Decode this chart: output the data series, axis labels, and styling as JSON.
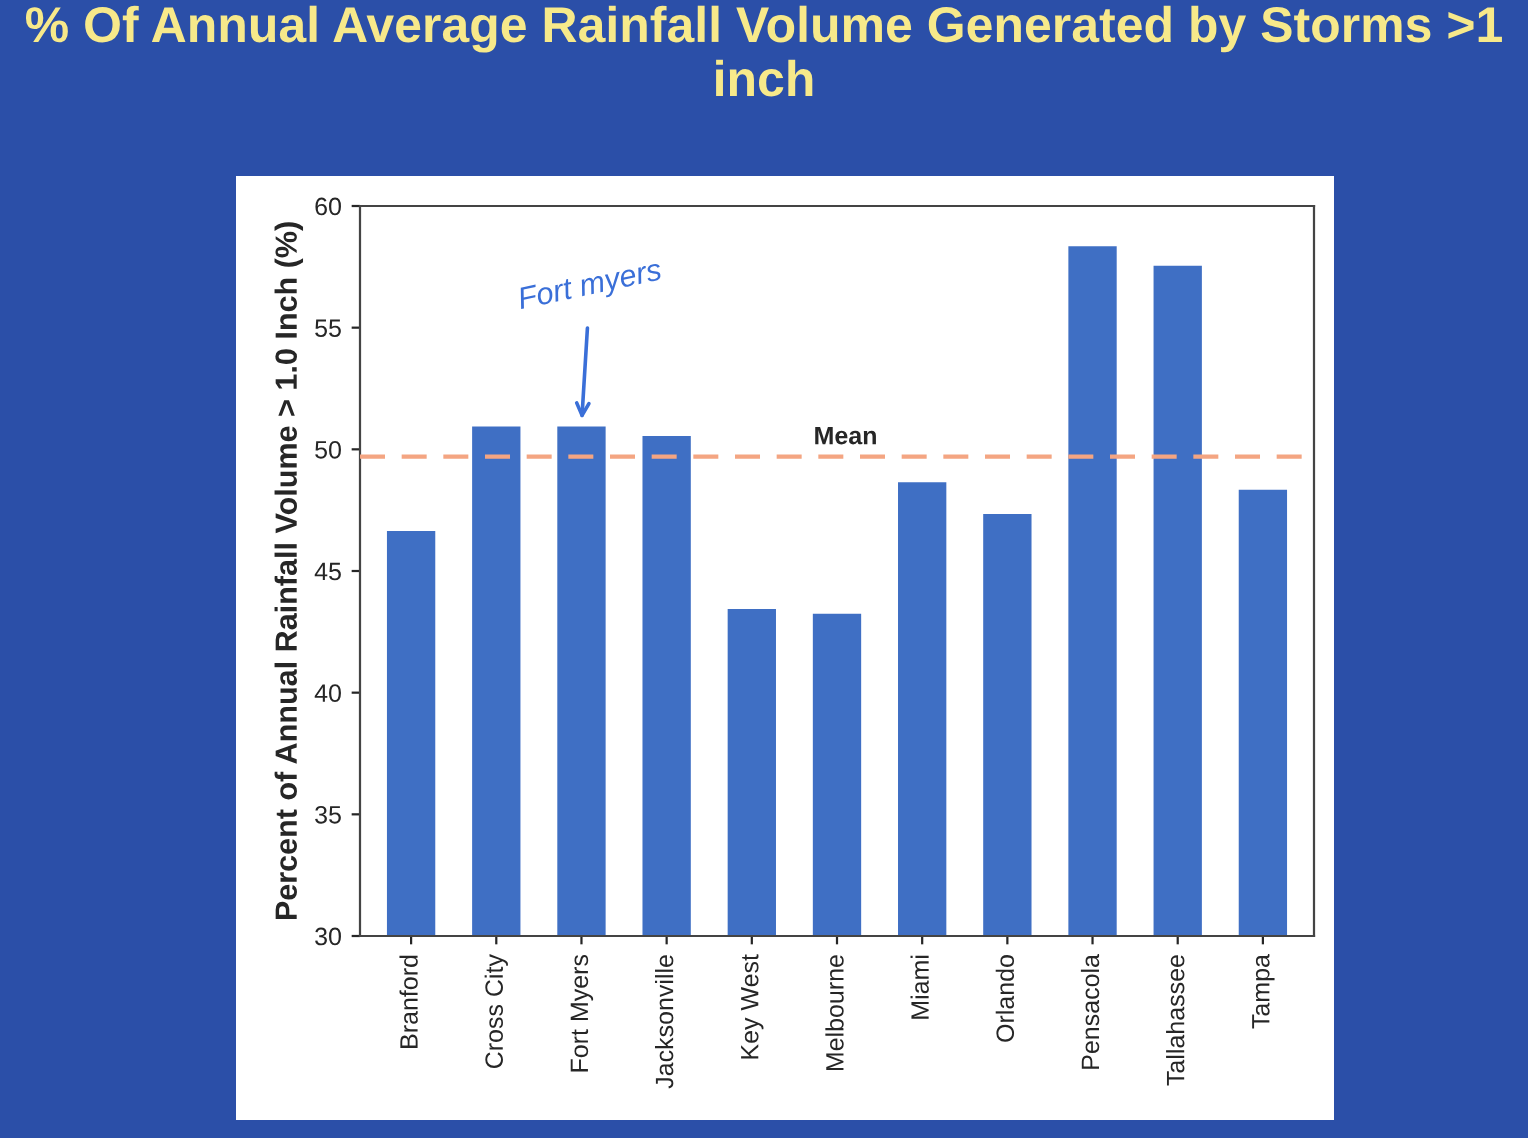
{
  "chart_data": {
    "type": "bar",
    "title": "% Of Annual Average Rainfall Volume Generated by Storms >1 inch",
    "ylabel": "Percent of Annual Rainfall Volume > 1.0 Inch (%)",
    "categories": [
      "Branford",
      "Cross City",
      "Fort Myers",
      "Jacksonville",
      "Key West",
      "Melbourne",
      "Miami",
      "Orlando",
      "Pensacola",
      "Tallahassee",
      "Tampa"
    ],
    "values": [
      46.7,
      51.0,
      51.0,
      50.6,
      43.5,
      43.3,
      48.7,
      47.4,
      58.4,
      57.6,
      48.4
    ],
    "color": "#3f6fc4",
    "ylim": [
      30,
      60
    ],
    "yticks": [
      30,
      35,
      40,
      45,
      50,
      55,
      60
    ],
    "ref_lines": [
      {
        "axis": "y",
        "value": 49.7,
        "label": "Mean",
        "color": "#f4a582",
        "line_style": "dashed"
      }
    ],
    "annotations": [
      {
        "text": "Fort myers",
        "x": "Fort Myers",
        "y": 51.0
      }
    ],
    "grid": false,
    "legend": false
  }
}
